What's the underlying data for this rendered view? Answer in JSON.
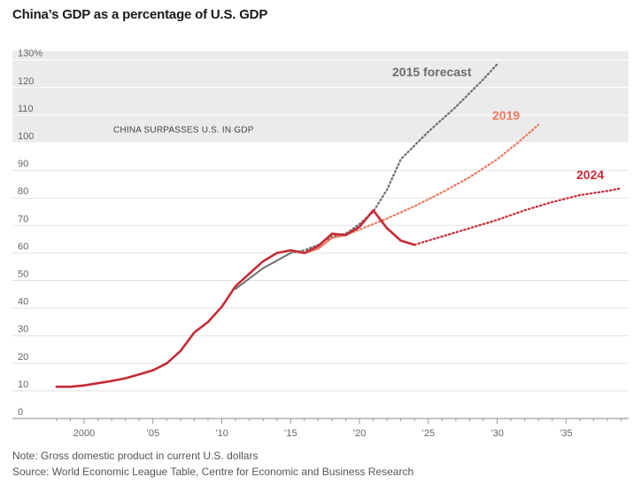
{
  "chart_data": {
    "type": "line",
    "title": "China’s GDP as a percentage of U.S. GDP",
    "xlabel": "",
    "ylabel": "",
    "xlim": [
      1997,
      2040
    ],
    "ylim": [
      0,
      130
    ],
    "y_ticks": [
      0,
      10,
      20,
      30,
      40,
      50,
      60,
      70,
      80,
      90,
      100,
      110,
      120,
      130
    ],
    "y_tick_labels": [
      "0",
      "10",
      "20",
      "30",
      "40",
      "50",
      "60",
      "70",
      "80",
      "90",
      "100",
      "110",
      "120",
      "130%"
    ],
    "x_ticks": [
      2000,
      2005,
      2010,
      2015,
      2020,
      2025,
      2030,
      2035
    ],
    "x_tick_labels": [
      "2000",
      "’05",
      "’10",
      "’15",
      "’20",
      "’25",
      "’30",
      "’35"
    ],
    "band": {
      "y_from": 100,
      "y_to": 130,
      "label": "CHINA SURPASSES U.S. IN GDP",
      "color": "#ebebeb"
    },
    "grid": true,
    "series": [
      {
        "name": "2015 forecast",
        "color": "#6e6e6e",
        "actual": [
          [
            2011,
            47
          ],
          [
            2013,
            54.5
          ],
          [
            2015,
            60
          ]
        ],
        "forecast": [
          [
            2015,
            60
          ],
          [
            2016,
            61
          ],
          [
            2017,
            63
          ],
          [
            2018,
            66
          ],
          [
            2019,
            67
          ],
          [
            2020,
            70.5
          ],
          [
            2021,
            75
          ],
          [
            2022,
            83
          ],
          [
            2023,
            94
          ],
          [
            2024,
            99
          ],
          [
            2025,
            104
          ],
          [
            2026,
            108.5
          ],
          [
            2027,
            113
          ],
          [
            2028,
            118
          ],
          [
            2029,
            123
          ],
          [
            2030,
            128.5
          ]
        ]
      },
      {
        "name": "2019",
        "color": "#ec7b5f",
        "actual": [
          [
            2015,
            61
          ],
          [
            2016,
            60
          ],
          [
            2017,
            61.5
          ],
          [
            2018,
            65.5
          ],
          [
            2019,
            66.5
          ]
        ],
        "forecast": [
          [
            2019,
            66.5
          ],
          [
            2020,
            68.5
          ],
          [
            2022,
            72.5
          ],
          [
            2024,
            77
          ],
          [
            2026,
            82
          ],
          [
            2028,
            87.5
          ],
          [
            2030,
            94
          ],
          [
            2031.5,
            100
          ],
          [
            2033,
            106.5
          ]
        ]
      },
      {
        "name": "2024",
        "color": "#c72a35",
        "actual": [
          [
            1998,
            11.5
          ],
          [
            1999,
            11.5
          ],
          [
            2000,
            12
          ],
          [
            2001,
            12.8
          ],
          [
            2002,
            13.6
          ],
          [
            2003,
            14.6
          ],
          [
            2004,
            16
          ],
          [
            2005,
            17.5
          ],
          [
            2006,
            20
          ],
          [
            2007,
            24.5
          ],
          [
            2008,
            31.2
          ],
          [
            2009,
            35
          ],
          [
            2010,
            40.5
          ],
          [
            2011,
            48
          ],
          [
            2012,
            52.5
          ],
          [
            2013,
            57
          ],
          [
            2014,
            60
          ],
          [
            2015,
            61
          ],
          [
            2016,
            60
          ],
          [
            2017,
            62.5
          ],
          [
            2018,
            67
          ],
          [
            2019,
            66.5
          ],
          [
            2020,
            69.5
          ],
          [
            2021,
            75.5
          ],
          [
            2022,
            69
          ],
          [
            2023,
            64.5
          ],
          [
            2024,
            63
          ]
        ],
        "forecast": [
          [
            2024,
            63
          ],
          [
            2026,
            66
          ],
          [
            2028,
            69
          ],
          [
            2030,
            72
          ],
          [
            2032,
            75.5
          ],
          [
            2034,
            78.5
          ],
          [
            2036,
            81
          ],
          [
            2038,
            82.5
          ],
          [
            2039,
            83.5
          ]
        ]
      }
    ]
  },
  "footer": {
    "note": "Note: Gross domestic product in current U.S. dollars",
    "source": "Source: World Economic League Table, Centre for Economic and Business Research"
  }
}
